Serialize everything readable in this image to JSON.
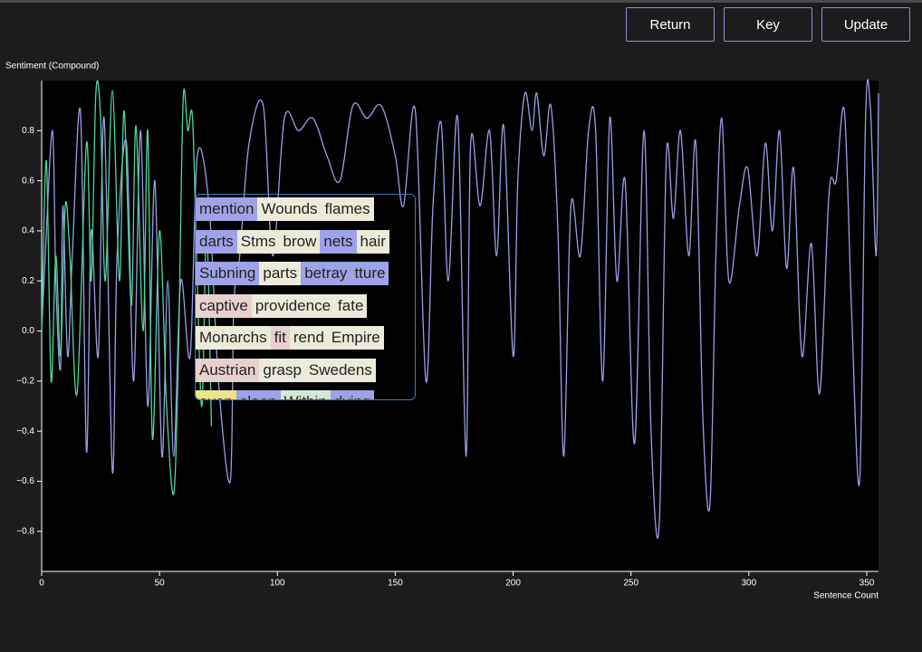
{
  "buttons": [
    "Return",
    "Key",
    "Update"
  ],
  "chart_data": {
    "type": "line",
    "y_label": "Sentiment (Compound)",
    "x_label": "Sentence Count",
    "xlim": [
      0,
      355
    ],
    "ylim": [
      -0.96,
      1.0
    ],
    "xticks": [
      0,
      50,
      100,
      150,
      200,
      250,
      300,
      350
    ],
    "yticks": [
      {
        "value": -0.8,
        "label": "−0.8"
      },
      {
        "value": -0.6,
        "label": "−0.6"
      },
      {
        "value": -0.4,
        "label": "−0.4"
      },
      {
        "value": -0.2,
        "label": "−0.2"
      },
      {
        "value": 0,
        "label": "0.0"
      },
      0.2,
      0.4,
      0.6,
      0.8
    ],
    "series": [
      {
        "color": "#9a9ee6",
        "x": [
          0,
          1.5,
          4.6,
          6,
          8,
          9,
          11,
          13,
          16.5,
          19,
          21,
          24,
          26.5,
          30,
          32,
          36,
          39,
          42,
          45,
          48,
          51,
          53.5,
          56,
          59,
          63,
          66,
          71,
          75,
          80,
          81.5,
          84,
          88,
          94,
          98,
          103,
          109,
          115,
          121,
          126.5,
          132,
          138,
          144,
          150,
          153.5,
          158.5,
          163,
          166,
          169.5,
          172.5,
          176.5,
          180,
          182,
          186,
          190,
          193,
          196,
          200,
          202,
          205,
          208,
          210,
          213,
          216,
          219,
          221.5,
          224.5,
          228.5,
          232,
          235,
          238,
          241,
          244,
          247.5,
          251.5,
          255.5,
          258.5,
          262,
          265,
          268,
          271,
          274.5,
          277.5,
          280.5,
          283.5,
          286,
          288.5,
          291.5,
          296,
          299.5,
          303.5,
          307,
          310,
          313,
          316,
          319,
          322.5,
          326.5,
          330,
          334,
          337,
          340.5,
          343.5,
          347,
          349.5,
          351.5,
          354,
          355
        ],
        "values": [
          0.0,
          0.3,
          0.8,
          0.2,
          -0.15,
          0.5,
          -0.1,
          0.3,
          0.87,
          -0.48,
          0.4,
          -0.1,
          0.85,
          -0.56,
          0.3,
          0.75,
          -0.2,
          0.8,
          -0.3,
          0.6,
          -0.5,
          0.2,
          -0.5,
          0.2,
          -0.1,
          0.7,
          0.5,
          -0.2,
          -0.6,
          0.1,
          0.3,
          0.75,
          0.9,
          0.3,
          0.85,
          0.8,
          0.85,
          0.7,
          0.6,
          0.9,
          0.85,
          0.9,
          0.7,
          0.5,
          0.88,
          -0.2,
          0.5,
          0.83,
          0.2,
          0.85,
          -0.5,
          0.75,
          0.5,
          0.8,
          0.3,
          0.82,
          -0.1,
          0.6,
          0.95,
          0.8,
          0.95,
          0.7,
          0.9,
          0.4,
          -0.5,
          0.5,
          0.3,
          0.8,
          0.8,
          -0.2,
          0.85,
          0.2,
          0.6,
          -0.45,
          0.8,
          -0.4,
          -0.77,
          0.7,
          0.45,
          0.8,
          0.3,
          0.75,
          -0.35,
          -0.69,
          0.3,
          0.85,
          0.2,
          0.5,
          0.65,
          0.3,
          0.75,
          0.4,
          0.8,
          0.25,
          0.65,
          -0.1,
          0.35,
          -0.25,
          0.55,
          0.6,
          0.88,
          0.1,
          -0.6,
          0.85,
          0.9,
          0.3,
          0.95
        ]
      },
      {
        "color": "#4fd69a",
        "x": [
          0,
          2,
          4,
          6,
          8,
          10,
          12,
          15,
          19,
          21,
          23,
          25,
          27,
          30,
          33,
          35,
          38,
          40,
          43,
          45,
          47,
          50,
          53,
          56,
          58,
          60,
          62,
          64,
          66,
          68,
          70,
          72
        ],
        "values": [
          0.0,
          0.68,
          -0.2,
          0.3,
          -0.1,
          0.5,
          0.3,
          -0.25,
          0.75,
          0.2,
          0.95,
          0.85,
          0.2,
          0.96,
          0.2,
          0.88,
          0.1,
          0.82,
          0.0,
          0.8,
          -0.43,
          0.4,
          -0.3,
          -0.65,
          -0.1,
          0.92,
          0.8,
          0.85,
          0.2,
          -0.3,
          0.4,
          -0.38
        ]
      }
    ]
  },
  "overlay": {
    "rows": [
      [
        {
          "word": "mention",
          "color": "#9ea3e8"
        },
        {
          "word": "Wounds",
          "color": "#ecebd9"
        },
        {
          "word": "flames",
          "color": "#ecebd9"
        }
      ],
      [
        {
          "word": "darts",
          "color": "#9ea3e8"
        },
        {
          "word": "Stms",
          "color": "#ecebd9"
        },
        {
          "word": "brow",
          "color": "#ecebd9"
        },
        {
          "word": "nets",
          "color": "#9ea3e8"
        },
        {
          "word": "hair",
          "color": "#ecebd9"
        }
      ],
      [
        {
          "word": "Subning",
          "color": "#9ea3e8"
        },
        {
          "word": "parts",
          "color": "#ecebd9"
        },
        {
          "word": "betray",
          "color": "#9ea3e8"
        },
        {
          "word": "tture",
          "color": "#9ea3e8"
        }
      ],
      [
        {
          "word": "captive",
          "color": "#e8d0cf"
        },
        {
          "word": "providence",
          "color": "#ecebd9"
        },
        {
          "word": "fate",
          "color": "#ecebd9"
        }
      ],
      [
        {
          "word": "Monarchs",
          "color": "#ecebd9"
        },
        {
          "word": "fit",
          "color": "#e8d0cf"
        },
        {
          "word": "rend",
          "color": "#ecebd9"
        },
        {
          "word": "Empire",
          "color": "#ecebd9"
        }
      ],
      [
        {
          "word": "Austrian",
          "color": "#e8d0cf"
        },
        {
          "word": "grasp",
          "color": "#ecebd9"
        },
        {
          "word": "Swedens",
          "color": "#ecebd9"
        }
      ],
      [
        {
          "word": "even",
          "color": "#ece38c"
        },
        {
          "word": "sleep",
          "color": "#9ea3e8"
        },
        {
          "word": "Within",
          "color": "#cfe8d9"
        },
        {
          "word": "dying",
          "color": "#9ea3e8"
        }
      ]
    ]
  }
}
